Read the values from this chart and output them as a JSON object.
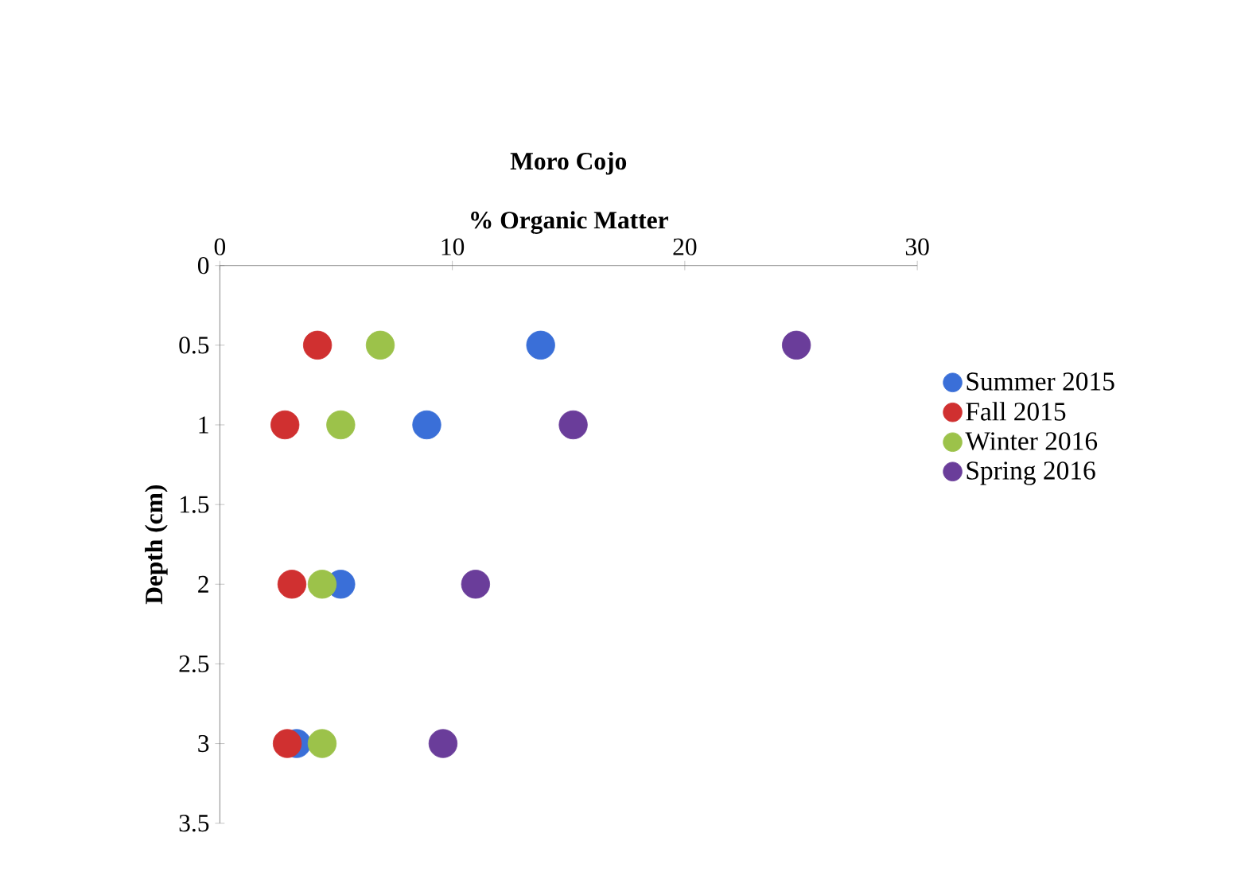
{
  "chart_data": {
    "type": "scatter",
    "title": "Moro Cojo",
    "xlabel": "% Organic Matter",
    "ylabel": "Depth (cm)",
    "xlim": [
      0,
      30
    ],
    "xticks": [
      0,
      10,
      20,
      30
    ],
    "ylim": [
      3.5,
      0
    ],
    "yticks": [
      0,
      0.5,
      1,
      1.5,
      2,
      2.5,
      3,
      3.5
    ],
    "marker": "circle",
    "legend": "right",
    "series": [
      {
        "name": "Summer 2015",
        "color": "#3a6fd8",
        "x": [
          13.8,
          8.9,
          5.2,
          3.3
        ],
        "values": [
          0.5,
          1,
          2,
          3
        ]
      },
      {
        "name": "Fall 2015",
        "color": "#d03030",
        "x": [
          4.2,
          2.8,
          3.1,
          2.9
        ],
        "values": [
          0.5,
          1,
          2,
          3
        ]
      },
      {
        "name": "Winter 2016",
        "color": "#9cc24a",
        "x": [
          6.9,
          5.2,
          4.4,
          4.4
        ],
        "values": [
          0.5,
          1,
          2,
          3
        ]
      },
      {
        "name": "Spring 2016",
        "color": "#6a3d9a",
        "x": [
          24.8,
          15.2,
          11.0,
          9.6
        ],
        "values": [
          0.5,
          1,
          2,
          3
        ]
      }
    ]
  }
}
